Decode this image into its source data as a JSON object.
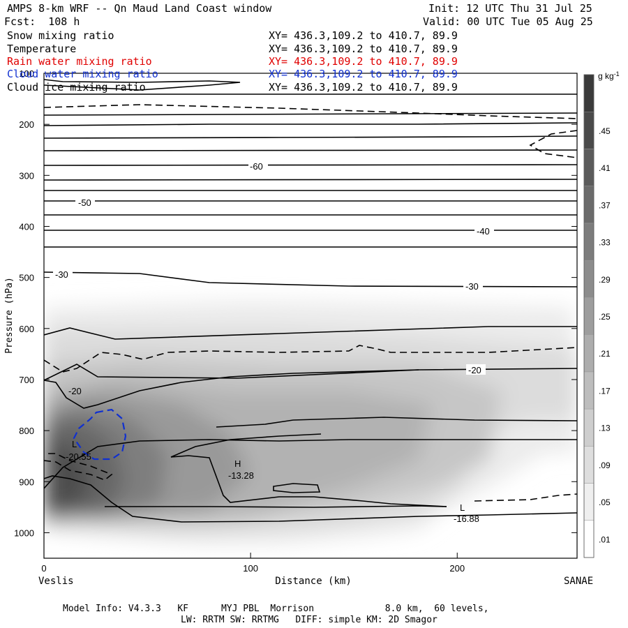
{
  "header": {
    "title": "AMPS 8-km WRF -- Qn Maud Land Coast window",
    "init": "Init: 12 UTC Thu 31 Jul 25",
    "fcst": "Fcst:  108 h",
    "valid": "Valid: 00 UTC Tue 05 Aug 25"
  },
  "fields": [
    {
      "label": "Snow mixing ratio",
      "xy": "XY= 436.3,109.2 to 410.7, 89.9",
      "color": "#000000"
    },
    {
      "label": "Temperature",
      "xy": "XY= 436.3,109.2 to 410.7, 89.9",
      "color": "#000000"
    },
    {
      "label": "Rain water mixing ratio",
      "xy": "XY= 436.3,109.2 to 410.7, 89.9",
      "color": "#e00000"
    },
    {
      "label": "Cloud water mixing ratio",
      "xy": "XY= 436.3,109.2 to 410.7, 89.9",
      "color": "#1030d0"
    },
    {
      "label": "Cloud ice mixing ratio",
      "xy": "XY= 436.3,109.2 to 410.7, 89.9",
      "color": "#000000"
    }
  ],
  "footer": {
    "line1": "Model Info: V4.3.3   KF      MYJ PBL  Morrison             8.0 km,  60 levels,",
    "line2": "LW: RRTM SW: RRTMG   DIFF: simple KM: 2D Smagor"
  },
  "chart_data": {
    "type": "heatmap",
    "title": "AMPS 8-km WRF -- Qn Maud Land Coast window",
    "xlabel": "Distance (km)",
    "ylabel": "Pressure (hPa)",
    "xlim": [
      0,
      258
    ],
    "ylim": [
      1050,
      100
    ],
    "x_ticks": [
      0,
      100,
      200
    ],
    "y_ticks": [
      100,
      200,
      300,
      400,
      500,
      600,
      700,
      800,
      900,
      1000
    ],
    "x_end_labels": {
      "left": "Veslis",
      "right": "SANAE"
    },
    "colorbar": {
      "unit": "g kg",
      "unit_exp": "-1",
      "levels": [
        ".01",
        ".05",
        ".09",
        ".13",
        ".17",
        ".21",
        ".25",
        ".29",
        ".33",
        ".37",
        ".41",
        ".45"
      ],
      "min_color": "#ffffff",
      "max_color": "#3a3a3a"
    },
    "temperature_labels": [
      {
        "text": "-60",
        "x": 104,
        "p": 278
      },
      {
        "text": "-50",
        "x": 21,
        "p": 348
      },
      {
        "text": "-40",
        "x": 214,
        "p": 406
      },
      {
        "text": "-30",
        "x": 10,
        "p": 491
      },
      {
        "text": "-30",
        "x": 208,
        "p": 512
      },
      {
        "text": "-20",
        "x": 16,
        "p": 747
      },
      {
        "text": "-20",
        "x": 209,
        "p": 679
      }
    ],
    "extrema": [
      {
        "mark": "H",
        "value": "-13.28",
        "x": 94,
        "p": 873
      },
      {
        "mark": "L",
        "value": "-20.55",
        "x": 14,
        "p": 834
      },
      {
        "mark": "L",
        "value": "-16.88",
        "x": 204,
        "p": 960
      }
    ],
    "series": [
      {
        "name": "Temperature",
        "style": "solid contours",
        "color": "#000000"
      },
      {
        "name": "Cloud ice mixing ratio",
        "style": "dashed contours",
        "color": "#000000"
      },
      {
        "name": "Cloud water mixing ratio",
        "style": "dashed contours",
        "color": "#1030d0"
      },
      {
        "name": "Snow mixing ratio",
        "style": "gray shading",
        "color": "#808080"
      }
    ]
  }
}
